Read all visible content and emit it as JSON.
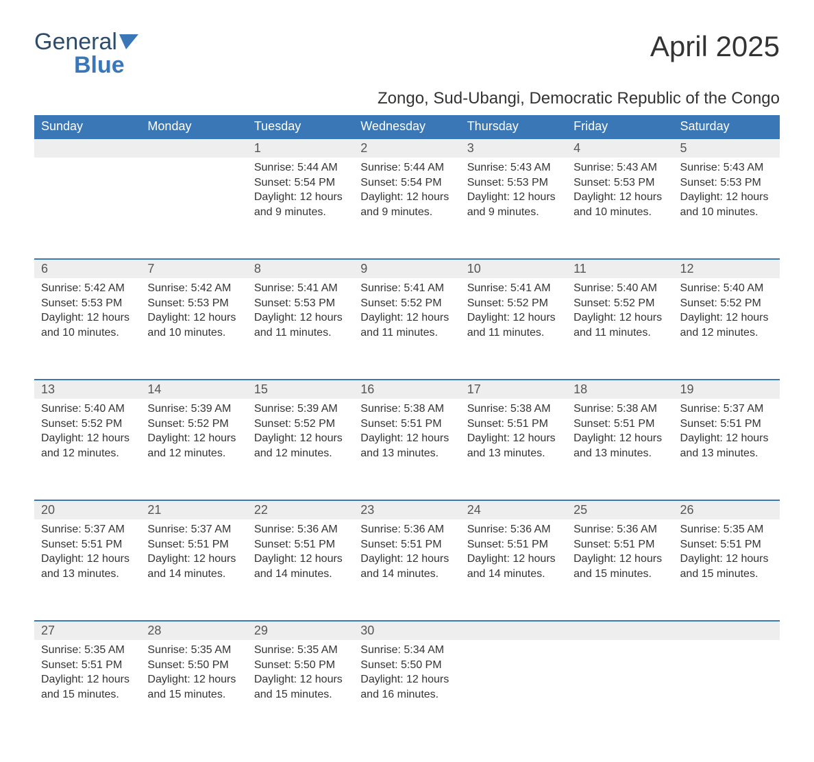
{
  "logo": {
    "word1": "General",
    "word2": "Blue"
  },
  "title": "April 2025",
  "subtitle": "Zongo, Sud-Ubangi, Democratic Republic of the Congo",
  "colors": {
    "header_blue": "#3a77b7",
    "logo_dark": "#2d4b6a",
    "row_gray": "#eeeeee",
    "text": "#333333",
    "background": "#ffffff"
  },
  "day_headers": [
    "Sunday",
    "Monday",
    "Tuesday",
    "Wednesday",
    "Thursday",
    "Friday",
    "Saturday"
  ],
  "labels": {
    "sunrise": "Sunrise: ",
    "sunset": "Sunset: ",
    "daylight": "Daylight: "
  },
  "weeks": [
    [
      null,
      null,
      {
        "n": "1",
        "sunrise": "5:44 AM",
        "sunset": "5:54 PM",
        "daylight": "12 hours and 9 minutes."
      },
      {
        "n": "2",
        "sunrise": "5:44 AM",
        "sunset": "5:54 PM",
        "daylight": "12 hours and 9 minutes."
      },
      {
        "n": "3",
        "sunrise": "5:43 AM",
        "sunset": "5:53 PM",
        "daylight": "12 hours and 9 minutes."
      },
      {
        "n": "4",
        "sunrise": "5:43 AM",
        "sunset": "5:53 PM",
        "daylight": "12 hours and 10 minutes."
      },
      {
        "n": "5",
        "sunrise": "5:43 AM",
        "sunset": "5:53 PM",
        "daylight": "12 hours and 10 minutes."
      }
    ],
    [
      {
        "n": "6",
        "sunrise": "5:42 AM",
        "sunset": "5:53 PM",
        "daylight": "12 hours and 10 minutes."
      },
      {
        "n": "7",
        "sunrise": "5:42 AM",
        "sunset": "5:53 PM",
        "daylight": "12 hours and 10 minutes."
      },
      {
        "n": "8",
        "sunrise": "5:41 AM",
        "sunset": "5:53 PM",
        "daylight": "12 hours and 11 minutes."
      },
      {
        "n": "9",
        "sunrise": "5:41 AM",
        "sunset": "5:52 PM",
        "daylight": "12 hours and 11 minutes."
      },
      {
        "n": "10",
        "sunrise": "5:41 AM",
        "sunset": "5:52 PM",
        "daylight": "12 hours and 11 minutes."
      },
      {
        "n": "11",
        "sunrise": "5:40 AM",
        "sunset": "5:52 PM",
        "daylight": "12 hours and 11 minutes."
      },
      {
        "n": "12",
        "sunrise": "5:40 AM",
        "sunset": "5:52 PM",
        "daylight": "12 hours and 12 minutes."
      }
    ],
    [
      {
        "n": "13",
        "sunrise": "5:40 AM",
        "sunset": "5:52 PM",
        "daylight": "12 hours and 12 minutes."
      },
      {
        "n": "14",
        "sunrise": "5:39 AM",
        "sunset": "5:52 PM",
        "daylight": "12 hours and 12 minutes."
      },
      {
        "n": "15",
        "sunrise": "5:39 AM",
        "sunset": "5:52 PM",
        "daylight": "12 hours and 12 minutes."
      },
      {
        "n": "16",
        "sunrise": "5:38 AM",
        "sunset": "5:51 PM",
        "daylight": "12 hours and 13 minutes."
      },
      {
        "n": "17",
        "sunrise": "5:38 AM",
        "sunset": "5:51 PM",
        "daylight": "12 hours and 13 minutes."
      },
      {
        "n": "18",
        "sunrise": "5:38 AM",
        "sunset": "5:51 PM",
        "daylight": "12 hours and 13 minutes."
      },
      {
        "n": "19",
        "sunrise": "5:37 AM",
        "sunset": "5:51 PM",
        "daylight": "12 hours and 13 minutes."
      }
    ],
    [
      {
        "n": "20",
        "sunrise": "5:37 AM",
        "sunset": "5:51 PM",
        "daylight": "12 hours and 13 minutes."
      },
      {
        "n": "21",
        "sunrise": "5:37 AM",
        "sunset": "5:51 PM",
        "daylight": "12 hours and 14 minutes."
      },
      {
        "n": "22",
        "sunrise": "5:36 AM",
        "sunset": "5:51 PM",
        "daylight": "12 hours and 14 minutes."
      },
      {
        "n": "23",
        "sunrise": "5:36 AM",
        "sunset": "5:51 PM",
        "daylight": "12 hours and 14 minutes."
      },
      {
        "n": "24",
        "sunrise": "5:36 AM",
        "sunset": "5:51 PM",
        "daylight": "12 hours and 14 minutes."
      },
      {
        "n": "25",
        "sunrise": "5:36 AM",
        "sunset": "5:51 PM",
        "daylight": "12 hours and 15 minutes."
      },
      {
        "n": "26",
        "sunrise": "5:35 AM",
        "sunset": "5:51 PM",
        "daylight": "12 hours and 15 minutes."
      }
    ],
    [
      {
        "n": "27",
        "sunrise": "5:35 AM",
        "sunset": "5:51 PM",
        "daylight": "12 hours and 15 minutes."
      },
      {
        "n": "28",
        "sunrise": "5:35 AM",
        "sunset": "5:50 PM",
        "daylight": "12 hours and 15 minutes."
      },
      {
        "n": "29",
        "sunrise": "5:35 AM",
        "sunset": "5:50 PM",
        "daylight": "12 hours and 15 minutes."
      },
      {
        "n": "30",
        "sunrise": "5:34 AM",
        "sunset": "5:50 PM",
        "daylight": "12 hours and 16 minutes."
      },
      null,
      null,
      null
    ]
  ]
}
